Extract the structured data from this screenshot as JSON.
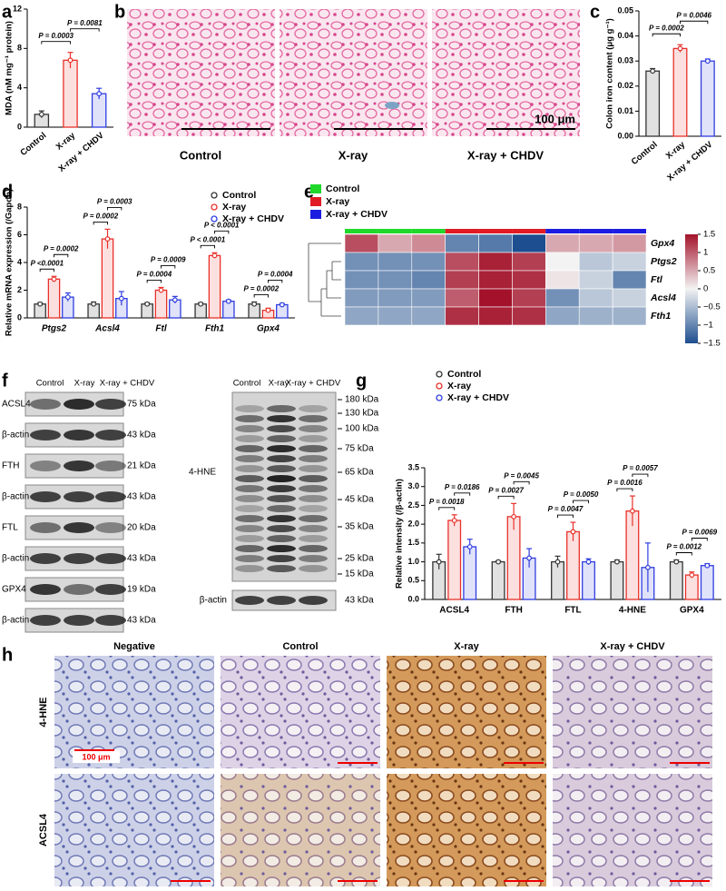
{
  "figure": {
    "panel_labels": [
      "a",
      "b",
      "c",
      "d",
      "e",
      "f",
      "g",
      "h"
    ],
    "b": {
      "labels": [
        "Control",
        "X-ray",
        "X-ray + CHDV"
      ],
      "scale_bar": "100 μm"
    },
    "f": {
      "columns": [
        "Control",
        "X-ray",
        "X-ray + CHDV"
      ],
      "left_blots": [
        {
          "name": "ACSL4",
          "size": "75 kDa"
        },
        {
          "name": "β-actin",
          "size": "43 kDa"
        },
        {
          "name": "FTH",
          "size": "21 kDa"
        },
        {
          "name": "β-actin",
          "size": "43 kDa"
        },
        {
          "name": "FTL",
          "size": "20 kDa"
        },
        {
          "name": "β-actin",
          "size": "43 kDa"
        },
        {
          "name": "GPX4",
          "size": "19 kDa"
        },
        {
          "name": "β-actin",
          "size": "43 kDa"
        }
      ],
      "right_columns": [
        "Control",
        "X-ray",
        "X-ray + CHDV"
      ],
      "hne_label": "4-HNE",
      "ladder": [
        "180 kDa",
        "130 kDa",
        "100 kDa",
        "75 kDa",
        "65 kDa",
        "45 kDa",
        "35 kDa",
        "25 kDa",
        "15 kDa"
      ],
      "actin": {
        "name": "β-actin",
        "size": "43 kDa"
      }
    },
    "h": {
      "columns": [
        "Negative",
        "Control",
        "X-ray",
        "X-ray + CHDV"
      ],
      "rows": [
        "4-HNE",
        "ACSL4"
      ],
      "scale_bar": "100 μm"
    }
  },
  "chart_data": [
    {
      "type": "bar",
      "ylabel": "MDA (nM mg⁻¹ protein)",
      "categories": [
        "Control",
        "X-ray",
        "X-ray + CHDV"
      ],
      "values": [
        1.3,
        6.8,
        3.4
      ],
      "errors": [
        0.35,
        0.8,
        0.55
      ],
      "colors": [
        "#333333",
        "#e8312a",
        "#2f3de0"
      ],
      "ylim": [
        0,
        12
      ],
      "yticks": [
        0,
        4,
        8,
        12
      ],
      "annotations": [
        "P = 0.0003",
        "P = 0.0081"
      ]
    },
    {
      "type": "bar",
      "ylabel": "Colon iron content (μg g⁻¹)",
      "categories": [
        "Control",
        "X-ray",
        "X-ray + CHDV"
      ],
      "values": [
        0.026,
        0.035,
        0.03
      ],
      "errors": [
        0.001,
        0.0015,
        0.0008
      ],
      "colors": [
        "#333333",
        "#e8312a",
        "#2f3de0"
      ],
      "ylim": [
        0,
        0.05
      ],
      "yticks": [
        {
          "value": 0,
          "label": "0.00"
        },
        0.01,
        0.02,
        0.03,
        0.04,
        0.05
      ],
      "annotations": [
        "P = 0.0002",
        "P = 0.0046"
      ]
    },
    {
      "type": "bar",
      "ylabel": "Relative mRNA expression (/Gapdh)",
      "categories": [
        "Ptgs2",
        "Acsl4",
        "Ftl",
        "Fth1",
        "Gpx4"
      ],
      "series": [
        {
          "name": "Control",
          "color": "#333333",
          "values": [
            1,
            1,
            1,
            1,
            1
          ],
          "errors": [
            0.1,
            0.15,
            0.1,
            0.1,
            0.15
          ]
        },
        {
          "name": "X-ray",
          "color": "#e8312a",
          "values": [
            2.8,
            5.7,
            2.0,
            4.5,
            0.55
          ],
          "errors": [
            0.2,
            0.7,
            0.2,
            0.2,
            0.15
          ]
        },
        {
          "name": "X-ray + CHDV",
          "color": "#2f3de0",
          "values": [
            1.5,
            1.4,
            1.3,
            1.2,
            0.95
          ],
          "errors": [
            0.3,
            0.5,
            0.25,
            0.1,
            0.1
          ]
        }
      ],
      "ylim": [
        0,
        8
      ],
      "yticks": [
        0,
        2,
        4,
        6,
        8
      ],
      "annotations": [
        "P <0.0001",
        "P = 0.0002",
        "P = 0.0002",
        "P = 0.0003",
        "P = 0.0004",
        "P = 0.0009",
        "P < 0.0001",
        "P < 0.0001",
        "P = 0.0002",
        "P = 0.0004"
      ]
    },
    {
      "type": "heatmap",
      "rows": [
        "Gpx4",
        "Ptgs2",
        "Ftl",
        "Acsl4",
        "Fth1"
      ],
      "groups": [
        {
          "name": "Control",
          "color": "#1fd82a"
        },
        {
          "name": "X-ray",
          "color": "#e01b24"
        },
        {
          "name": "X-ray + CHDV",
          "color": "#1c1ce0"
        }
      ],
      "values": [
        [
          1.1,
          0.5,
          0.7,
          -1.0,
          -1.1,
          -1.5,
          0.5,
          0.5,
          0.6
        ],
        [
          -0.9,
          -0.9,
          -0.9,
          1.1,
          1.4,
          1.2,
          0,
          -0.4,
          -0.3
        ],
        [
          -0.9,
          -0.9,
          -1.0,
          1.2,
          1.4,
          1.3,
          0.1,
          -0.3,
          -1.0
        ],
        [
          -0.8,
          -0.8,
          -0.8,
          1.0,
          1.5,
          1.2,
          -0.9,
          -0.4,
          -0.3
        ],
        [
          -0.7,
          -0.7,
          -0.7,
          1.3,
          1.4,
          1.3,
          -0.7,
          -0.6,
          -0.6
        ]
      ],
      "colormap": [
        "#1d4e8f",
        "#f3f3f3",
        "#a3122a"
      ],
      "clim": [
        -1.5,
        1.5
      ],
      "cticks": [
        1.5,
        1,
        0.5,
        0,
        {
          "value": -0.5,
          "label": "−0.5"
        },
        {
          "value": -1,
          "label": "−1"
        },
        {
          "value": -1.5,
          "label": "−1.5"
        }
      ]
    },
    {
      "type": "bar",
      "ylabel": "Relative intensity (/β-actin)",
      "categories": [
        "ACSL4",
        "FTH",
        "FTL",
        "4-HNE",
        "GPX4"
      ],
      "series": [
        {
          "name": "Control",
          "color": "#333333",
          "values": [
            1,
            1,
            1,
            1,
            1
          ],
          "errors": [
            0.2,
            0.03,
            0.15,
            0.05,
            0.05
          ]
        },
        {
          "name": "X-ray",
          "color": "#e8312a",
          "values": [
            2.1,
            2.2,
            1.8,
            2.35,
            0.65
          ],
          "errors": [
            0.15,
            0.35,
            0.25,
            0.4,
            0.08
          ]
        },
        {
          "name": "X-ray + CHDV",
          "color": "#2f3de0",
          "values": [
            1.4,
            1.1,
            1.0,
            0.85,
            0.9
          ],
          "errors": [
            0.2,
            0.25,
            0.08,
            0.65,
            0.05
          ]
        }
      ],
      "ylim": [
        0,
        3.5
      ],
      "yticks": [
        {
          "value": 0,
          "label": "0.0"
        },
        0.5,
        {
          "value": 1,
          "label": "1.0"
        },
        1.5,
        {
          "value": 2,
          "label": "2.0"
        },
        2.5,
        {
          "value": 3,
          "label": "3.0"
        },
        3.5
      ],
      "annotations": [
        "P = 0.0018",
        "P = 0.0186",
        "P = 0.0027",
        "P = 0.0045",
        "P = 0.0047",
        "P = 0.0050",
        "P = 0.0016",
        "P = 0.0057",
        "P = 0.0012",
        "P = 0.0069"
      ]
    }
  ]
}
